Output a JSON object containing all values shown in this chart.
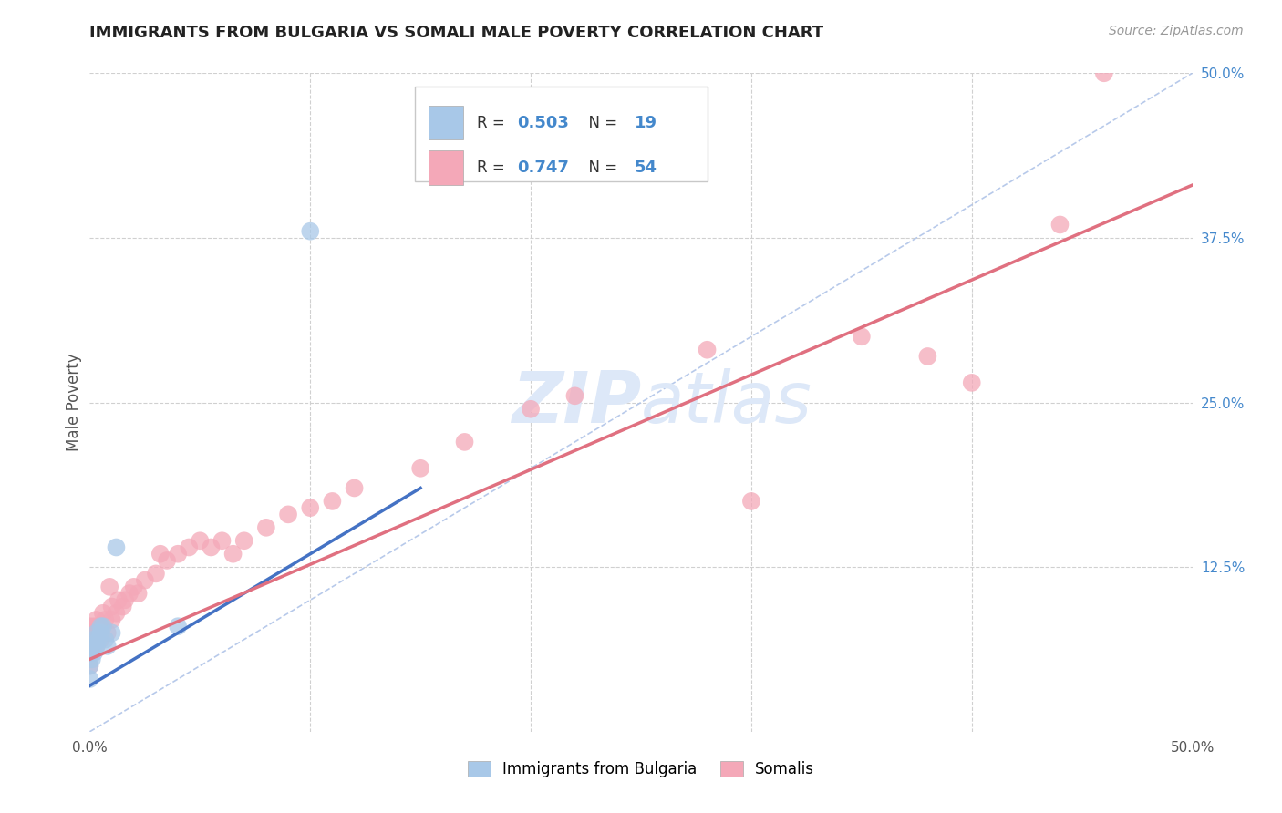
{
  "title": "IMMIGRANTS FROM BULGARIA VS SOMALI MALE POVERTY CORRELATION CHART",
  "source_text": "Source: ZipAtlas.com",
  "ylabel": "Male Poverty",
  "x_min": 0.0,
  "x_max": 0.5,
  "y_min": 0.0,
  "y_max": 0.5,
  "legend_blue_label": "Immigrants from Bulgaria",
  "legend_pink_label": "Somalis",
  "r_blue": "0.503",
  "n_blue": "19",
  "r_pink": "0.747",
  "n_pink": "54",
  "blue_color": "#a8c8e8",
  "pink_color": "#f4a8b8",
  "blue_line_color": "#4472c4",
  "pink_line_color": "#e07080",
  "diag_color": "#b0c4e8",
  "background_color": "#ffffff",
  "grid_color": "#d0d0d0",
  "title_color": "#222222",
  "label_color": "#4488cc",
  "watermark_color": "#dde8f8",
  "blue_scatter_x": [
    0.0,
    0.0,
    0.0,
    0.001,
    0.001,
    0.002,
    0.002,
    0.003,
    0.003,
    0.004,
    0.005,
    0.005,
    0.006,
    0.007,
    0.008,
    0.01,
    0.012,
    0.04,
    0.1
  ],
  "blue_scatter_y": [
    0.04,
    0.05,
    0.06,
    0.055,
    0.065,
    0.06,
    0.07,
    0.065,
    0.075,
    0.07,
    0.075,
    0.08,
    0.08,
    0.07,
    0.065,
    0.075,
    0.14,
    0.08,
    0.38
  ],
  "pink_scatter_x": [
    0.0,
    0.0,
    0.0,
    0.0,
    0.001,
    0.001,
    0.002,
    0.002,
    0.003,
    0.003,
    0.003,
    0.004,
    0.005,
    0.005,
    0.006,
    0.007,
    0.008,
    0.009,
    0.01,
    0.01,
    0.012,
    0.013,
    0.015,
    0.016,
    0.018,
    0.02,
    0.022,
    0.025,
    0.03,
    0.032,
    0.035,
    0.04,
    0.045,
    0.05,
    0.055,
    0.06,
    0.065,
    0.07,
    0.08,
    0.09,
    0.1,
    0.11,
    0.12,
    0.15,
    0.17,
    0.2,
    0.22,
    0.28,
    0.3,
    0.35,
    0.38,
    0.4,
    0.44,
    0.46
  ],
  "pink_scatter_y": [
    0.05,
    0.06,
    0.07,
    0.08,
    0.06,
    0.075,
    0.07,
    0.08,
    0.065,
    0.075,
    0.085,
    0.08,
    0.07,
    0.08,
    0.09,
    0.085,
    0.075,
    0.11,
    0.085,
    0.095,
    0.09,
    0.1,
    0.095,
    0.1,
    0.105,
    0.11,
    0.105,
    0.115,
    0.12,
    0.135,
    0.13,
    0.135,
    0.14,
    0.145,
    0.14,
    0.145,
    0.135,
    0.145,
    0.155,
    0.165,
    0.17,
    0.175,
    0.185,
    0.2,
    0.22,
    0.245,
    0.255,
    0.29,
    0.175,
    0.3,
    0.285,
    0.265,
    0.385,
    0.5
  ],
  "blue_line_x0": 0.0,
  "blue_line_x1": 0.15,
  "blue_line_y0": 0.035,
  "blue_line_y1": 0.185,
  "pink_line_x0": 0.0,
  "pink_line_x1": 0.5,
  "pink_line_y0": 0.055,
  "pink_line_y1": 0.415
}
